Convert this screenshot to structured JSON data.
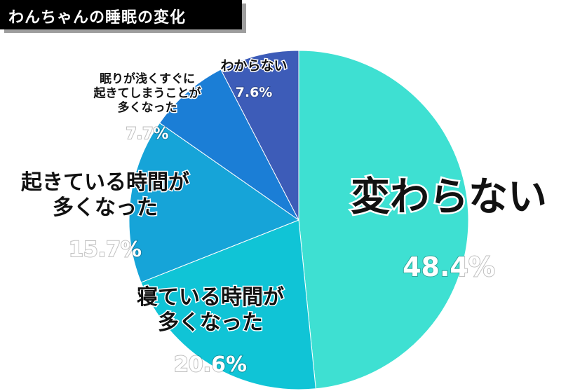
{
  "title": "わんちゃんの睡眠の変化",
  "colors": {
    "title_bg": "#000000",
    "title_text": "#ffffff"
  },
  "chart_data": {
    "type": "pie",
    "title": "わんちゃんの睡眠の変化",
    "start_angle_deg": 0,
    "direction": "clockwise",
    "slices": [
      {
        "label": [
          "変わらない"
        ],
        "value": 48.4,
        "value_label": "48.4%",
        "color": "#3ee0d2"
      },
      {
        "label": [
          "寝ている時間が",
          "多くなった"
        ],
        "value": 20.6,
        "value_label": "20.6%",
        "color": "#10c4d6"
      },
      {
        "label": [
          "起きている時間が",
          "多くなった"
        ],
        "value": 15.7,
        "value_label": "15.7%",
        "color": "#16a4d8"
      },
      {
        "label": [
          "眠りが浅くすぐに",
          "起きてしまうことが",
          "多くなった"
        ],
        "value": 7.7,
        "value_label": "7.7%",
        "color": "#1b7ed6"
      },
      {
        "label": [
          "わからない"
        ],
        "value": 7.6,
        "value_label": "7.6%",
        "color": "#3d5cb8"
      }
    ]
  }
}
